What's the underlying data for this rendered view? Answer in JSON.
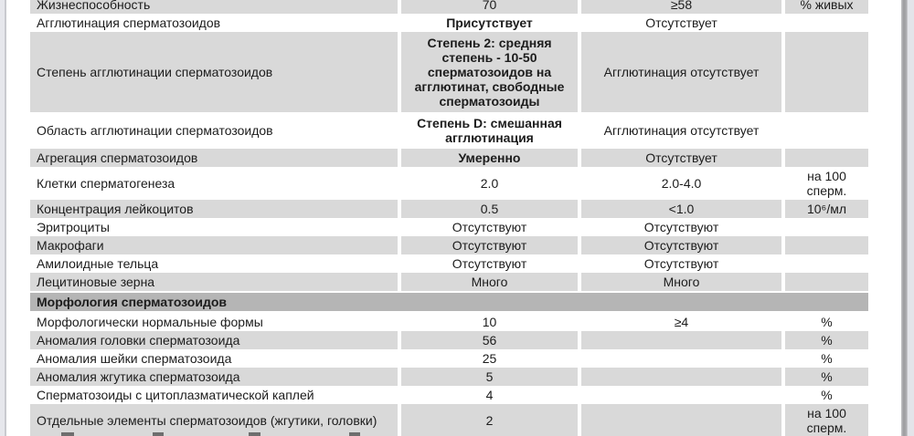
{
  "table": {
    "rows": [
      {
        "name": "Жизнеспособность",
        "result": "70",
        "result_bold": false,
        "reference": "≥58",
        "unit": "% живых",
        "shade": "gray"
      },
      {
        "name": "Агглютинация сперматозоидов",
        "result": "Присутствует",
        "result_bold": true,
        "reference": "Отсутствует",
        "unit": "",
        "shade": "white"
      },
      {
        "name": "Степень агглютинации сперматозоидов",
        "result": "Степень 2: средняя степень - 10-50 сперматозоидов на агглютинат, свободные сперматозоиды",
        "result_bold": true,
        "reference": "Агглютинация отсутствует",
        "unit": "",
        "shade": "gray",
        "big": true
      },
      {
        "name": "Область агглютинации сперматозоидов",
        "result": "Степень D: смешанная агглютинация",
        "result_bold": true,
        "reference": "Агглютинация отсутствует",
        "unit": "",
        "shade": "white",
        "big": true
      },
      {
        "name": "Агрегация сперматозоидов",
        "result": "Умеренно",
        "result_bold": true,
        "reference": "Отсутствует",
        "unit": "",
        "shade": "gray"
      },
      {
        "name": "Клетки сперматогенеза",
        "result": "2.0",
        "result_bold": false,
        "reference": "2.0-4.0",
        "unit": "на 100 сперм.",
        "shade": "white"
      },
      {
        "name": "Концентрация лейкоцитов",
        "result": "0.5",
        "result_bold": false,
        "reference": "<1.0",
        "unit": "10⁶/мл",
        "shade": "gray"
      },
      {
        "name": "Эритроциты",
        "result": "Отсутствуют",
        "result_bold": false,
        "reference": "Отсутствуют",
        "unit": "",
        "shade": "white"
      },
      {
        "name": "Макрофаги",
        "result": "Отсутствуют",
        "result_bold": false,
        "reference": "Отсутствуют",
        "unit": "",
        "shade": "gray"
      },
      {
        "name": "Амилоидные тельца",
        "result": "Отсутствуют",
        "result_bold": false,
        "reference": "Отсутствуют",
        "unit": "",
        "shade": "white"
      },
      {
        "name": "Лецитиновые зерна",
        "result": "Много",
        "result_bold": false,
        "reference": "Много",
        "unit": "",
        "shade": "gray"
      },
      {
        "type": "section",
        "name": "Морфология сперматозоидов"
      },
      {
        "name": "Морфологически нормальные формы",
        "result": "10",
        "result_bold": false,
        "reference": "≥4",
        "unit": "%",
        "shade": "white"
      },
      {
        "name": "Аномалия головки сперматозоида",
        "result": "56",
        "result_bold": false,
        "reference": "",
        "unit": "%",
        "shade": "gray"
      },
      {
        "name": "Аномалия шейки сперматозоида",
        "result": "25",
        "result_bold": false,
        "reference": "",
        "unit": "%",
        "shade": "white"
      },
      {
        "name": "Аномалия жгутика сперматозоида",
        "result": "5",
        "result_bold": false,
        "reference": "",
        "unit": "%",
        "shade": "gray"
      },
      {
        "name": "Сперматозоиды с цитоплазматической каплей",
        "result": "4",
        "result_bold": false,
        "reference": "",
        "unit": "%",
        "shade": "white"
      },
      {
        "name": "Отдельные элементы сперматозоидов (жгутики, головки)",
        "result": "2",
        "result_bold": false,
        "reference": "",
        "unit": "на 100 сперм.",
        "shade": "gray"
      }
    ]
  }
}
